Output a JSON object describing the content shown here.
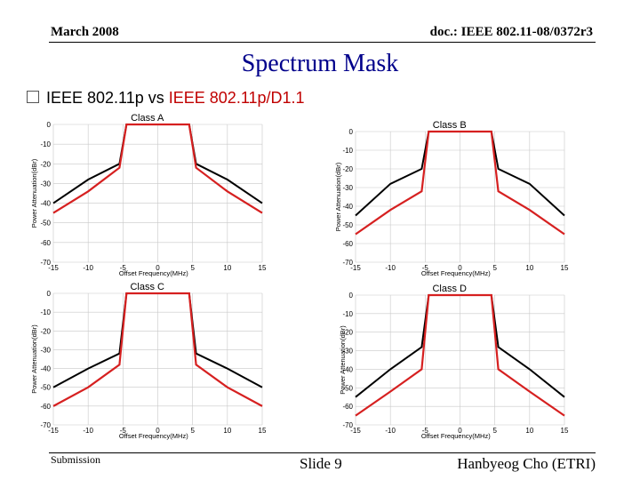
{
  "header": {
    "date": "March 2008",
    "doc": "doc.: IEEE 802.11-08/0372r3"
  },
  "title": "Spectrum Mask",
  "bullet": {
    "prefix": "IEEE 802.11p vs ",
    "highlight": "IEEE 802.11p/D1.1"
  },
  "footer": {
    "left": "Submission",
    "center": "Slide 9",
    "right": "Hanbyeog Cho (ETRI)"
  },
  "colors": {
    "black_series": "#000000",
    "red_series": "#d62020",
    "grid": "#c8c8c8"
  },
  "chart_data": [
    {
      "type": "line",
      "title": "Class A",
      "xlabel": "Offset Frequency(MHz)",
      "ylabel": "Power Attenuation(dBr)",
      "xlim": [
        -15,
        15
      ],
      "ylim": [
        -70,
        0
      ],
      "xticks": [
        -15,
        -10,
        -5,
        0,
        5,
        10,
        15
      ],
      "yticks": [
        0,
        -10,
        -20,
        -30,
        -40,
        -50,
        -60,
        -70
      ],
      "grid": true,
      "series": [
        {
          "color": "#000000",
          "points": [
            [
              -15,
              -40
            ],
            [
              -10,
              -28
            ],
            [
              -5.5,
              -20
            ],
            [
              -4.5,
              0
            ],
            [
              4.5,
              0
            ],
            [
              5.5,
              -20
            ],
            [
              10,
              -28
            ],
            [
              15,
              -40
            ]
          ]
        },
        {
          "color": "#d62020",
          "points": [
            [
              -15,
              -45
            ],
            [
              -10,
              -34
            ],
            [
              -5.5,
              -22
            ],
            [
              -4.5,
              0
            ],
            [
              4.5,
              0
            ],
            [
              5.5,
              -22
            ],
            [
              10,
              -34
            ],
            [
              15,
              -45
            ]
          ]
        }
      ]
    },
    {
      "type": "line",
      "title": "Class B",
      "xlabel": "Offset Frequency(MHz)",
      "ylabel": "Power Attenuation(dBr)",
      "xlim": [
        -15,
        15
      ],
      "ylim": [
        -70,
        0
      ],
      "xticks": [
        -15,
        -10,
        -5,
        0,
        5,
        10,
        15
      ],
      "yticks": [
        0,
        -10,
        -20,
        -30,
        -40,
        -50,
        -60,
        -70
      ],
      "grid": true,
      "series": [
        {
          "color": "#000000",
          "points": [
            [
              -15,
              -45
            ],
            [
              -10,
              -28
            ],
            [
              -5.5,
              -20
            ],
            [
              -4.5,
              0
            ],
            [
              4.5,
              0
            ],
            [
              5.5,
              -20
            ],
            [
              10,
              -28
            ],
            [
              15,
              -45
            ]
          ]
        },
        {
          "color": "#d62020",
          "points": [
            [
              -15,
              -55
            ],
            [
              -10,
              -42
            ],
            [
              -5.5,
              -32
            ],
            [
              -4.5,
              0
            ],
            [
              4.5,
              0
            ],
            [
              5.5,
              -32
            ],
            [
              10,
              -42
            ],
            [
              15,
              -55
            ]
          ]
        }
      ]
    },
    {
      "type": "line",
      "title": "Class C",
      "xlabel": "Offset Frequency(MHz)",
      "ylabel": "Power Attenuation(dBr)",
      "xlim": [
        -15,
        15
      ],
      "ylim": [
        -70,
        0
      ],
      "xticks": [
        -15,
        -10,
        -5,
        0,
        5,
        10,
        15
      ],
      "yticks": [
        0,
        -10,
        -20,
        -30,
        -40,
        -50,
        -60,
        -70
      ],
      "grid": true,
      "series": [
        {
          "color": "#000000",
          "points": [
            [
              -15,
              -50
            ],
            [
              -10,
              -40
            ],
            [
              -5.5,
              -32
            ],
            [
              -4.5,
              0
            ],
            [
              4.5,
              0
            ],
            [
              5.5,
              -32
            ],
            [
              10,
              -40
            ],
            [
              15,
              -50
            ]
          ]
        },
        {
          "color": "#d62020",
          "points": [
            [
              -15,
              -60
            ],
            [
              -10,
              -50
            ],
            [
              -5.5,
              -38
            ],
            [
              -4.5,
              0
            ],
            [
              4.5,
              0
            ],
            [
              5.5,
              -38
            ],
            [
              10,
              -50
            ],
            [
              15,
              -60
            ]
          ]
        }
      ]
    },
    {
      "type": "line",
      "title": "Class D",
      "xlabel": "Offset Frequency(MHz)",
      "ylabel": "Power Attenuation(dBr)",
      "xlim": [
        -15,
        15
      ],
      "ylim": [
        -70,
        0
      ],
      "xticks": [
        -15,
        -10,
        -5,
        0,
        5,
        10,
        15
      ],
      "yticks": [
        0,
        -10,
        -20,
        -30,
        -40,
        -50,
        -60,
        -70
      ],
      "grid": true,
      "series": [
        {
          "color": "#000000",
          "points": [
            [
              -15,
              -55
            ],
            [
              -10,
              -40
            ],
            [
              -5.5,
              -28
            ],
            [
              -4.5,
              0
            ],
            [
              4.5,
              0
            ],
            [
              5.5,
              -28
            ],
            [
              10,
              -40
            ],
            [
              15,
              -55
            ]
          ]
        },
        {
          "color": "#d62020",
          "points": [
            [
              -15,
              -65
            ],
            [
              -10,
              -52
            ],
            [
              -5.5,
              -40
            ],
            [
              -4.5,
              0
            ],
            [
              4.5,
              0
            ],
            [
              5.5,
              -40
            ],
            [
              10,
              -52
            ],
            [
              15,
              -65
            ]
          ]
        }
      ]
    }
  ]
}
